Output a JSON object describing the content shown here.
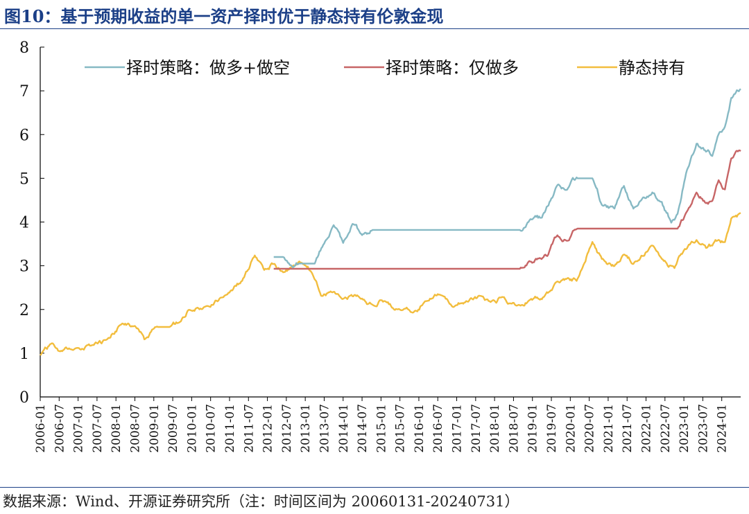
{
  "figure": {
    "title": "图10：基于预期收益的单一资产择时优于静态持有伦敦金现",
    "source": "数据来源：Wind、开源证券研究所（注：时间区间为 20060131-20240731）"
  },
  "colors": {
    "title": "#1b3f87",
    "series_long_short": "#86b9c4",
    "series_long_only": "#c76566",
    "series_static": "#f2bd3d"
  },
  "chart_data": {
    "type": "line",
    "title": "",
    "xlabel": "",
    "ylabel": "",
    "ylim": [
      0,
      8
    ],
    "yticks": [
      0,
      1,
      2,
      3,
      4,
      5,
      6,
      7,
      8
    ],
    "xlim": [
      "2006-01",
      "2024-07"
    ],
    "xticks": [
      "2006-01",
      "2006-07",
      "2007-01",
      "2007-07",
      "2008-01",
      "2008-07",
      "2009-01",
      "2009-07",
      "2010-01",
      "2010-07",
      "2011-01",
      "2011-07",
      "2012-01",
      "2012-07",
      "2013-01",
      "2013-07",
      "2014-01",
      "2014-07",
      "2015-01",
      "2015-07",
      "2016-01",
      "2016-07",
      "2017-01",
      "2017-07",
      "2018-01",
      "2018-07",
      "2019-01",
      "2019-07",
      "2020-01",
      "2020-07",
      "2021-01",
      "2021-07",
      "2022-01",
      "2022-07",
      "2023-01",
      "2023-07",
      "2024-01"
    ],
    "legend_position": "top",
    "grid": false,
    "series": [
      {
        "name": "择时策略：做多+做空",
        "color": "#86b9c4",
        "points": [
          [
            "2012-03",
            3.2
          ],
          [
            "2012-06",
            3.2
          ],
          [
            "2012-09",
            2.95
          ],
          [
            "2012-12",
            3.05
          ],
          [
            "2013-04",
            3.05
          ],
          [
            "2013-07",
            3.5
          ],
          [
            "2013-10",
            3.9
          ],
          [
            "2014-01",
            3.5
          ],
          [
            "2014-04",
            3.95
          ],
          [
            "2014-07",
            3.7
          ],
          [
            "2014-10",
            3.82
          ],
          [
            "2018-09",
            3.82
          ],
          [
            "2019-01",
            4.05
          ],
          [
            "2019-04",
            4.1
          ],
          [
            "2019-07",
            4.55
          ],
          [
            "2019-09",
            4.85
          ],
          [
            "2019-12",
            4.75
          ],
          [
            "2020-03",
            5.0
          ],
          [
            "2020-08",
            5.0
          ],
          [
            "2020-11",
            4.4
          ],
          [
            "2021-03",
            4.3
          ],
          [
            "2021-06",
            4.8
          ],
          [
            "2021-09",
            4.3
          ],
          [
            "2022-01",
            4.55
          ],
          [
            "2022-03",
            4.7
          ],
          [
            "2022-06",
            4.5
          ],
          [
            "2022-09",
            4.0
          ],
          [
            "2022-11",
            4.2
          ],
          [
            "2023-02",
            5.2
          ],
          [
            "2023-05",
            5.8
          ],
          [
            "2023-08",
            5.6
          ],
          [
            "2023-10",
            5.5
          ],
          [
            "2023-12",
            6.0
          ],
          [
            "2024-02",
            6.2
          ],
          [
            "2024-04",
            6.85
          ],
          [
            "2024-07",
            7.05
          ]
        ]
      },
      {
        "name": "择时策略：仅做多",
        "color": "#c76566",
        "points": [
          [
            "2012-03",
            2.93
          ],
          [
            "2018-09",
            2.93
          ],
          [
            "2018-12",
            3.1
          ],
          [
            "2019-03",
            3.15
          ],
          [
            "2019-06",
            3.25
          ],
          [
            "2019-08",
            3.65
          ],
          [
            "2019-12",
            3.6
          ],
          [
            "2020-03",
            3.85
          ],
          [
            "2022-11",
            3.85
          ],
          [
            "2023-02",
            4.25
          ],
          [
            "2023-05",
            4.65
          ],
          [
            "2023-08",
            4.45
          ],
          [
            "2023-10",
            4.5
          ],
          [
            "2023-12",
            4.95
          ],
          [
            "2024-02",
            4.75
          ],
          [
            "2024-04",
            5.45
          ],
          [
            "2024-07",
            5.6
          ]
        ]
      },
      {
        "name": "静态持有",
        "color": "#f2bd3d",
        "points": [
          [
            "2006-01",
            0.95
          ],
          [
            "2006-05",
            1.2
          ],
          [
            "2006-07",
            1.05
          ],
          [
            "2006-12",
            1.1
          ],
          [
            "2007-06",
            1.15
          ],
          [
            "2007-10",
            1.3
          ],
          [
            "2008-03",
            1.7
          ],
          [
            "2008-07",
            1.65
          ],
          [
            "2008-10",
            1.3
          ],
          [
            "2009-02",
            1.6
          ],
          [
            "2009-06",
            1.6
          ],
          [
            "2009-09",
            1.7
          ],
          [
            "2009-12",
            2.0
          ],
          [
            "2010-06",
            2.1
          ],
          [
            "2010-12",
            2.35
          ],
          [
            "2011-05",
            2.65
          ],
          [
            "2011-09",
            3.25
          ],
          [
            "2011-12",
            2.9
          ],
          [
            "2012-03",
            3.05
          ],
          [
            "2012-06",
            2.85
          ],
          [
            "2012-09",
            3.0
          ],
          [
            "2012-12",
            3.05
          ],
          [
            "2013-03",
            2.85
          ],
          [
            "2013-06",
            2.3
          ],
          [
            "2013-09",
            2.4
          ],
          [
            "2014-01",
            2.25
          ],
          [
            "2014-03",
            2.3
          ],
          [
            "2014-07",
            2.25
          ],
          [
            "2014-11",
            2.1
          ],
          [
            "2015-01",
            2.2
          ],
          [
            "2015-07",
            2.0
          ],
          [
            "2015-11",
            1.95
          ],
          [
            "2016-03",
            2.2
          ],
          [
            "2016-07",
            2.35
          ],
          [
            "2016-12",
            2.05
          ],
          [
            "2017-04",
            2.2
          ],
          [
            "2017-09",
            2.3
          ],
          [
            "2017-12",
            2.2
          ],
          [
            "2018-04",
            2.3
          ],
          [
            "2018-08",
            2.1
          ],
          [
            "2018-12",
            2.2
          ],
          [
            "2019-04",
            2.25
          ],
          [
            "2019-09",
            2.65
          ],
          [
            "2019-12",
            2.7
          ],
          [
            "2020-03",
            2.65
          ],
          [
            "2020-08",
            3.55
          ],
          [
            "2020-11",
            3.15
          ],
          [
            "2021-03",
            3.0
          ],
          [
            "2021-06",
            3.25
          ],
          [
            "2021-09",
            3.05
          ],
          [
            "2022-03",
            3.45
          ],
          [
            "2022-06",
            3.15
          ],
          [
            "2022-10",
            2.95
          ],
          [
            "2023-01",
            3.35
          ],
          [
            "2023-05",
            3.6
          ],
          [
            "2023-08",
            3.4
          ],
          [
            "2023-10",
            3.45
          ],
          [
            "2023-12",
            3.6
          ],
          [
            "2024-02",
            3.55
          ],
          [
            "2024-04",
            4.1
          ],
          [
            "2024-07",
            4.2
          ]
        ]
      }
    ]
  }
}
